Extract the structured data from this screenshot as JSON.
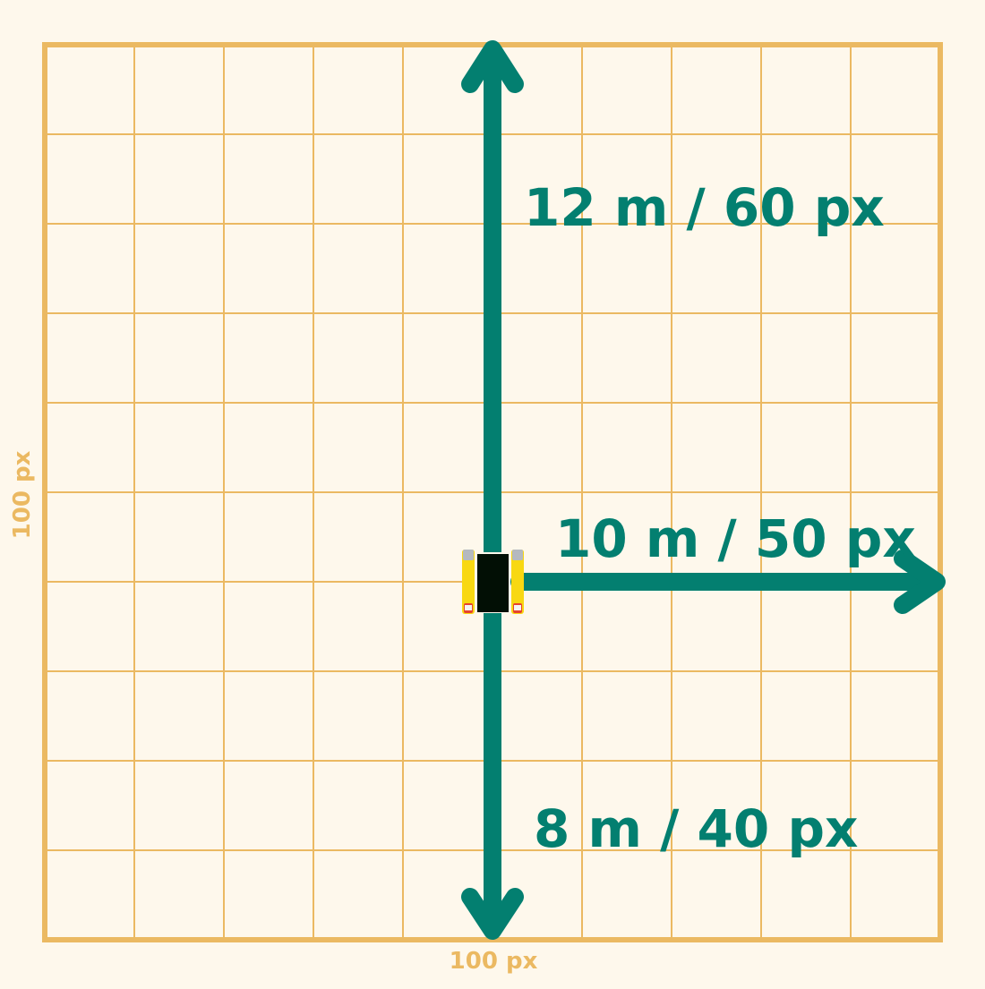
{
  "colors": {
    "background": "#FEF8EC",
    "grid": "#EBB962",
    "arrow": "#037F70",
    "car_body": "#020F05",
    "car_wheels": "#F8D812",
    "car_lights": "#E7432E"
  },
  "grid": {
    "columns": 10,
    "rows": 10
  },
  "axis_labels": {
    "x": "100 px",
    "y": "100 px"
  },
  "measurements": {
    "up": "12 m / 60 px",
    "right": "10 m / 50 px",
    "down": "8 m / 40 px"
  },
  "car_icon": "car-top-view-icon"
}
